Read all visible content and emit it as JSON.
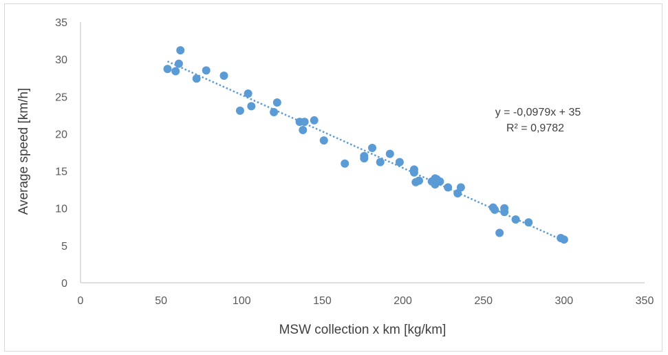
{
  "chart_data": {
    "type": "scatter",
    "xlabel": "MSW collection x km [kg/km]",
    "ylabel": "Average speed [km/h]",
    "xlim": [
      0,
      350
    ],
    "ylim": [
      0,
      35
    ],
    "xticks": [
      "0",
      "50",
      "100",
      "150",
      "200",
      "250",
      "300",
      "350"
    ],
    "yticks": [
      "0",
      "5",
      "10",
      "15",
      "20",
      "25",
      "30",
      "35"
    ],
    "grid": false,
    "marker_color": "#5b9bd5",
    "trendline": {
      "type": "linear",
      "slope": -0.0979,
      "intercept": 35,
      "x_range": [
        54,
        300
      ],
      "style": "dotted",
      "equation_label": "y = -0,0979x + 35",
      "r2_label": "R² = 0,9782"
    },
    "points": [
      {
        "x": 54,
        "y": 28.7
      },
      {
        "x": 59,
        "y": 28.4
      },
      {
        "x": 61,
        "y": 29.4
      },
      {
        "x": 62,
        "y": 31.2
      },
      {
        "x": 72,
        "y": 27.4
      },
      {
        "x": 78,
        "y": 28.5
      },
      {
        "x": 89,
        "y": 27.8
      },
      {
        "x": 99,
        "y": 23.1
      },
      {
        "x": 104,
        "y": 25.4
      },
      {
        "x": 106,
        "y": 23.7
      },
      {
        "x": 120,
        "y": 22.9
      },
      {
        "x": 122,
        "y": 24.2
      },
      {
        "x": 136,
        "y": 21.6
      },
      {
        "x": 138,
        "y": 20.5
      },
      {
        "x": 139,
        "y": 21.6
      },
      {
        "x": 145,
        "y": 21.8
      },
      {
        "x": 151,
        "y": 19.1
      },
      {
        "x": 164,
        "y": 16.0
      },
      {
        "x": 176,
        "y": 17.0
      },
      {
        "x": 176,
        "y": 16.7
      },
      {
        "x": 181,
        "y": 18.1
      },
      {
        "x": 186,
        "y": 16.2
      },
      {
        "x": 192,
        "y": 17.3
      },
      {
        "x": 198,
        "y": 16.2
      },
      {
        "x": 207,
        "y": 15.2
      },
      {
        "x": 207,
        "y": 14.8
      },
      {
        "x": 208,
        "y": 13.5
      },
      {
        "x": 210,
        "y": 13.7
      },
      {
        "x": 218,
        "y": 13.6
      },
      {
        "x": 220,
        "y": 14.0
      },
      {
        "x": 220,
        "y": 13.2
      },
      {
        "x": 221,
        "y": 13.9
      },
      {
        "x": 223,
        "y": 13.6
      },
      {
        "x": 228,
        "y": 12.8
      },
      {
        "x": 234,
        "y": 12.0
      },
      {
        "x": 236,
        "y": 12.8
      },
      {
        "x": 256,
        "y": 10.1
      },
      {
        "x": 257,
        "y": 9.8
      },
      {
        "x": 260,
        "y": 6.7
      },
      {
        "x": 263,
        "y": 10.0
      },
      {
        "x": 263,
        "y": 9.5
      },
      {
        "x": 270,
        "y": 8.5
      },
      {
        "x": 278,
        "y": 8.1
      },
      {
        "x": 298,
        "y": 6.0
      },
      {
        "x": 300,
        "y": 5.8
      }
    ]
  }
}
